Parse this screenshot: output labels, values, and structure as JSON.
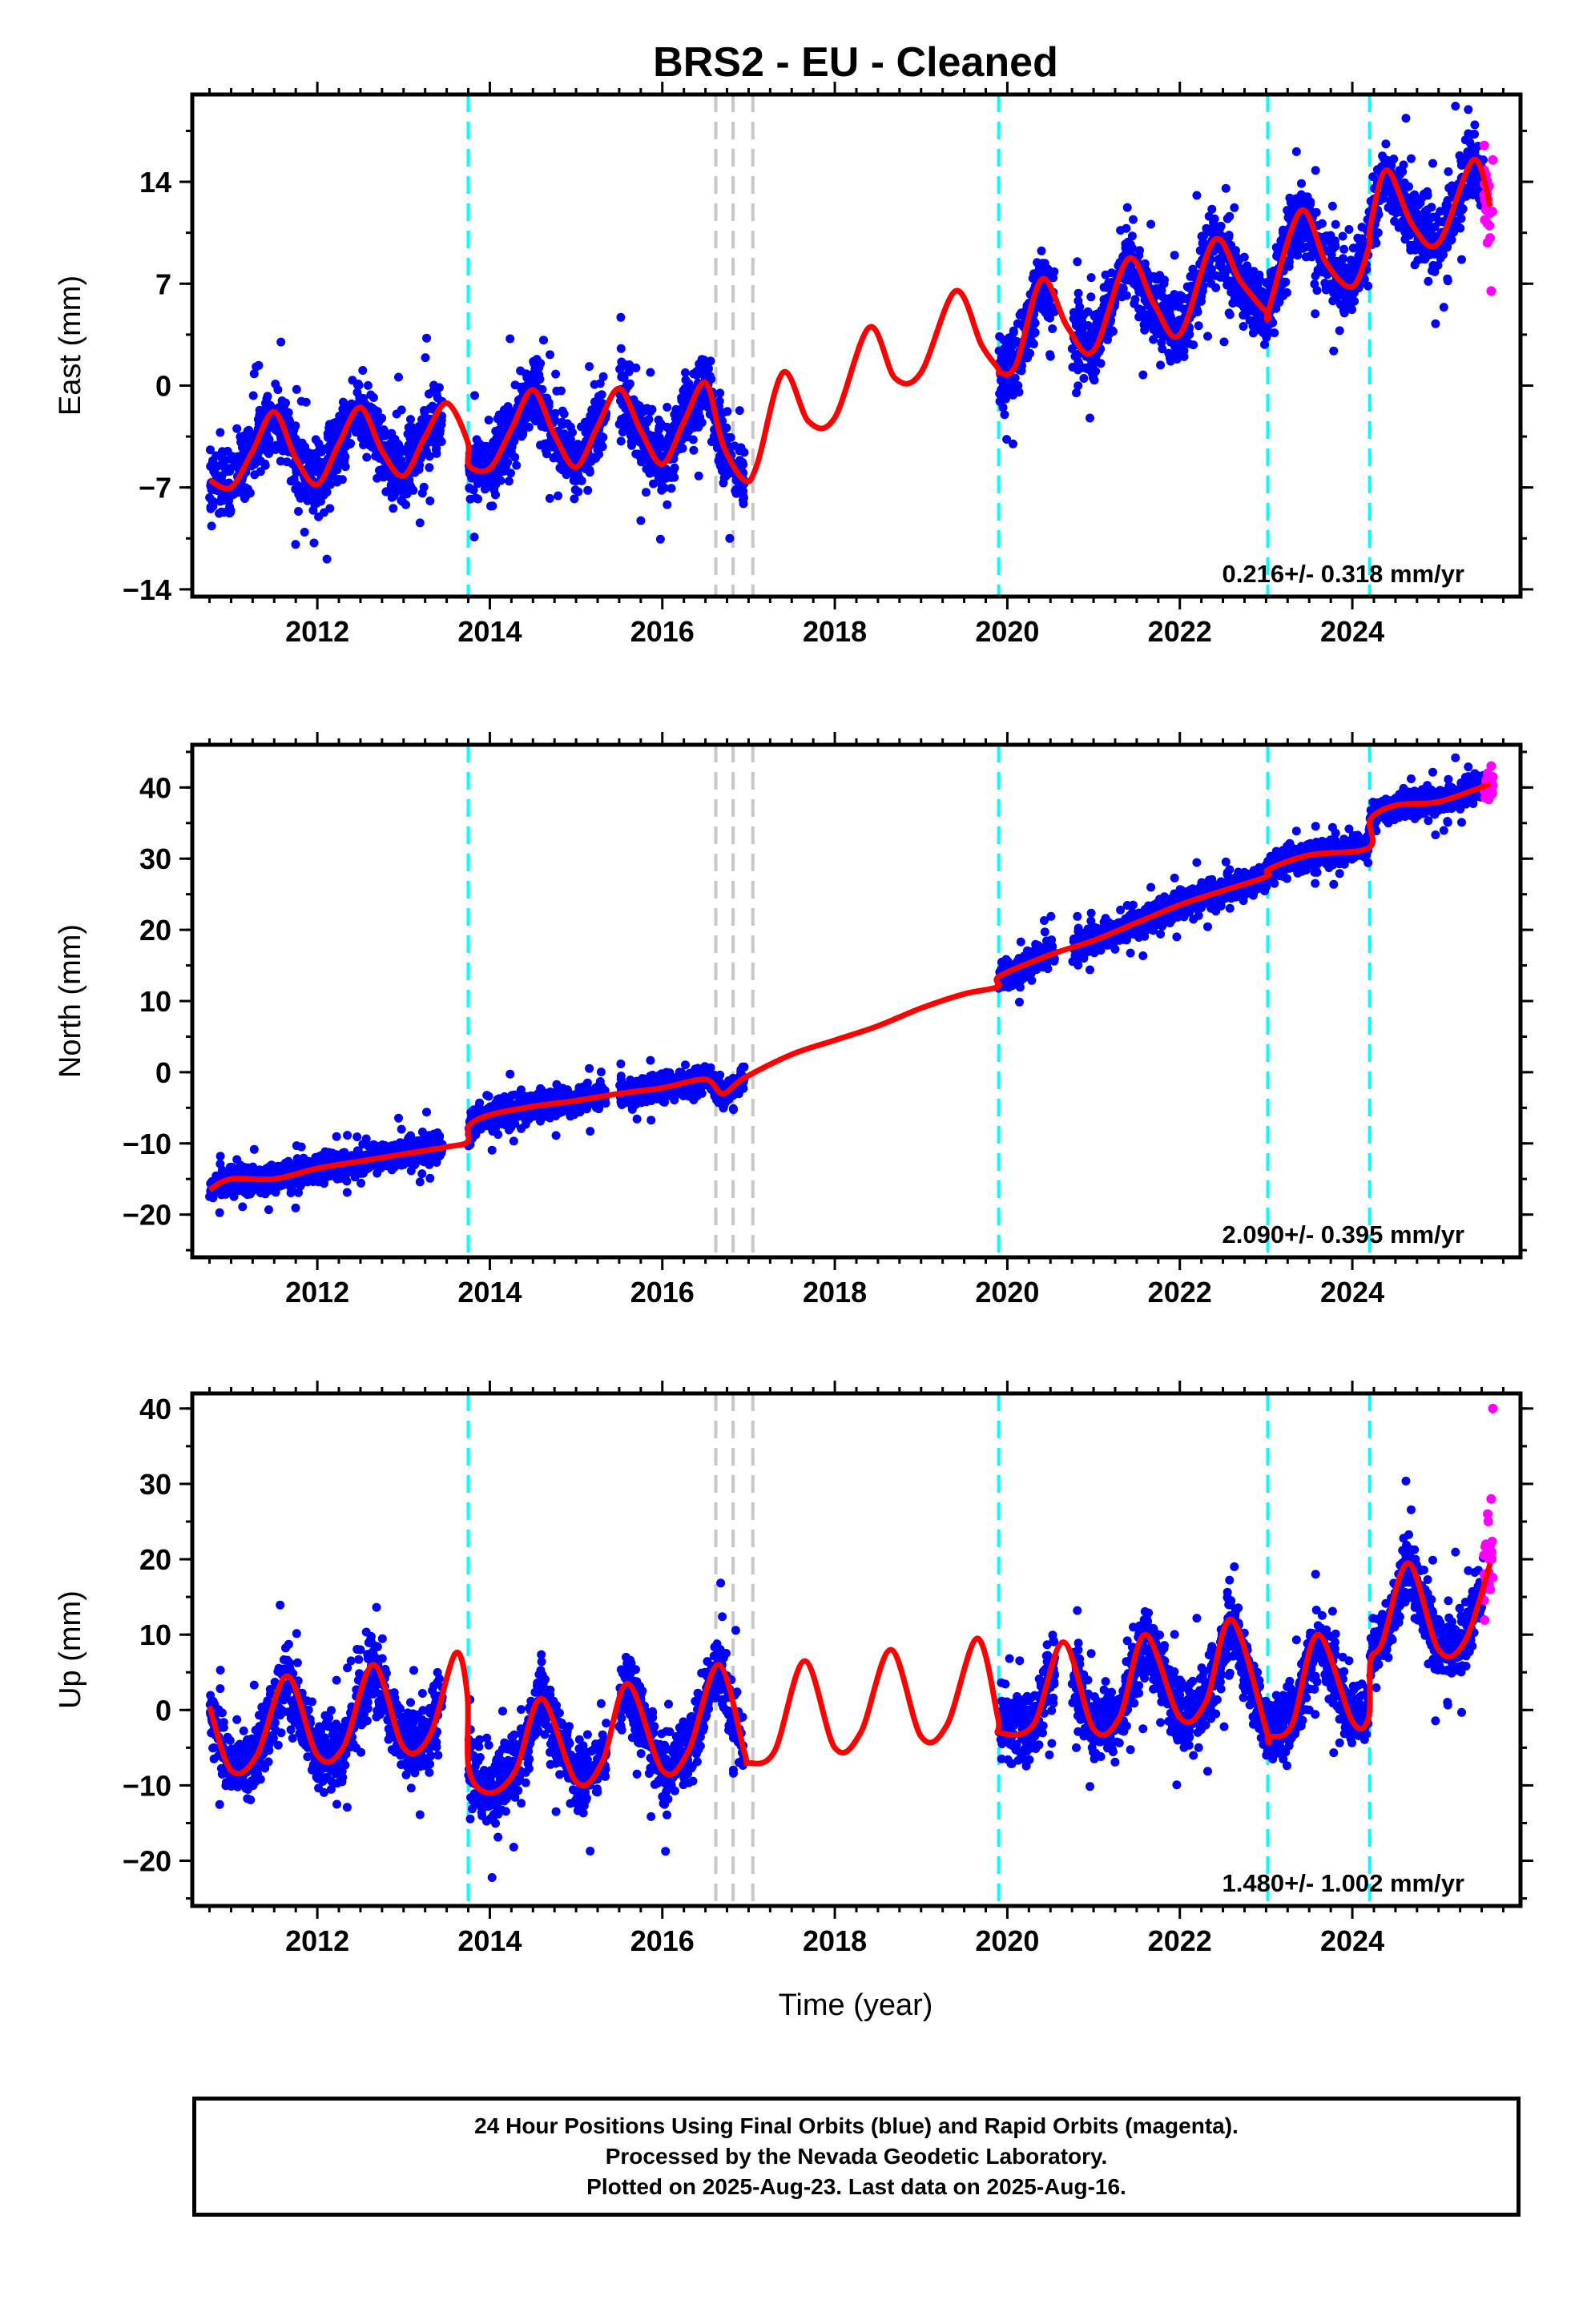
{
  "title": "BRS2  - EU - Cleaned",
  "x_axis_label": "Time (year)",
  "footer": [
    "24 Hour Positions Using Final Orbits (blue) and Rapid Orbits (magenta).",
    "Processed by the Nevada Geodetic Laboratory.",
    "Plotted on 2025-Aug-23. Last data on 2025-Aug-16."
  ],
  "colors": {
    "final_orbits": "#0000ff",
    "rapid_orbits": "#ff00ff",
    "model_fit": "#ff0000",
    "equipment_change_lines": "#00ffff",
    "gray_event_lines": "#c8c8c8"
  },
  "chart_data": [
    {
      "type": "scatter",
      "title": "BRS2  - EU - Cleaned",
      "xlabel": "",
      "ylabel": "East (mm)",
      "xlim": [
        2010.55,
        2025.95
      ],
      "ylim": [
        -14.5,
        20
      ],
      "x_ticks": [
        2012,
        2014,
        2016,
        2018,
        2020,
        2022,
        2024
      ],
      "y_ticks": [
        -14,
        -7,
        0,
        7,
        14
      ],
      "grid": false,
      "rate_label": "0.216+/- 0.318 mm/yr",
      "event_lines_cyan": [
        2013.75,
        2019.9,
        2023.02,
        2024.2
      ],
      "event_lines_gray": [
        2016.62,
        2016.82,
        2017.05
      ],
      "data_periods": [
        [
          2010.75,
          2013.45
        ],
        [
          2013.75,
          2015.35
        ],
        [
          2015.5,
          2016.95
        ],
        [
          2019.9,
          2020.55
        ],
        [
          2020.75,
          2025.52
        ]
      ],
      "rapid_period": [
        2025.52,
        2025.63
      ],
      "series": [
        {
          "name": "model fit",
          "x": [
            2010.75,
            2011.0,
            2011.25,
            2011.5,
            2011.75,
            2012.0,
            2012.25,
            2012.5,
            2012.75,
            2013.0,
            2013.25,
            2013.5,
            2013.74,
            2013.76,
            2014.0,
            2014.25,
            2014.5,
            2014.75,
            2015.0,
            2015.25,
            2015.5,
            2015.75,
            2016.0,
            2016.25,
            2016.5,
            2016.7,
            2016.95,
            2017.1,
            2017.4,
            2017.7,
            2018.0,
            2018.4,
            2018.7,
            2019.0,
            2019.4,
            2019.7,
            2019.89,
            2019.91,
            2020.1,
            2020.4,
            2020.7,
            2021.0,
            2021.4,
            2021.7,
            2022.0,
            2022.4,
            2022.7,
            2023.01,
            2023.03,
            2023.4,
            2023.7,
            2024.0,
            2024.19,
            2024.21,
            2024.4,
            2024.7,
            2025.0,
            2025.4,
            2025.6
          ],
          "y": [
            -6.5,
            -7.0,
            -4.5,
            -1.8,
            -5.0,
            -6.8,
            -4.0,
            -1.5,
            -4.5,
            -6.2,
            -3.5,
            -1.2,
            -3.8,
            -5.5,
            -5.7,
            -3.0,
            -0.3,
            -3.4,
            -5.6,
            -2.8,
            -0.2,
            -3.1,
            -5.4,
            -2.5,
            0.2,
            -4.0,
            -6.5,
            -5.4,
            0.9,
            -2.5,
            -2.2,
            4.0,
            0.5,
            0.9,
            6.5,
            2.8,
            1.2,
            0.9,
            1.4,
            7.3,
            4.0,
            2.4,
            8.7,
            5.6,
            3.5,
            10.0,
            7.2,
            5.0,
            5.2,
            12.0,
            8.4,
            6.8,
            9.5,
            11.0,
            14.8,
            11.0,
            9.8,
            15.5,
            12.3
          ]
        },
        {
          "name": "final orbits",
          "x": [
            2010.8,
            2011.0,
            2011.2,
            2011.4,
            2011.6,
            2011.8,
            2012.0,
            2012.2,
            2012.4,
            2012.6,
            2012.8,
            2013.0,
            2013.2,
            2013.8,
            2014.0,
            2014.2,
            2014.4,
            2014.6,
            2014.8,
            2015.0,
            2015.2,
            2015.6,
            2015.8,
            2016.0,
            2016.2,
            2016.4,
            2016.6,
            2016.8,
            2019.95,
            2020.1,
            2020.3,
            2020.5,
            2020.8,
            2021.0,
            2021.2,
            2021.4,
            2021.6,
            2021.8,
            2022.0,
            2022.2,
            2022.4,
            2022.6,
            2022.8,
            2023.0,
            2023.2,
            2023.4,
            2023.6,
            2023.8,
            2024.0,
            2024.3,
            2024.5,
            2024.7,
            2024.9,
            2025.1,
            2025.3,
            2025.5
          ],
          "y": [
            -8.0,
            -7.5,
            -5.0,
            -2.5,
            -3.5,
            -5.8,
            -7.0,
            -5.5,
            -2.5,
            -4.0,
            -6.2,
            -7.5,
            -5.0,
            -5.0,
            -5.5,
            -3.5,
            -1.0,
            -2.8,
            -5.0,
            -5.2,
            -3.0,
            -1.5,
            -3.0,
            -5.0,
            -4.0,
            -1.0,
            -3.5,
            -6.0,
            -1.5,
            2.0,
            4.5,
            2.0,
            -0.5,
            1.5,
            4.5,
            8.5,
            8.0,
            5.0,
            4.5,
            7.0,
            10.0,
            9.0,
            6.5,
            5.5,
            7.0,
            11.5,
            11.0,
            8.0,
            7.0,
            10.5,
            14.0,
            13.0,
            10.0,
            9.5,
            13.0,
            15.0
          ]
        },
        {
          "name": "rapid orbits",
          "x": [
            2025.53,
            2025.55,
            2025.57,
            2025.59,
            2025.61,
            2025.63
          ],
          "y": [
            16.5,
            14.5,
            12.8,
            11.0,
            6.5,
            15.5
          ]
        }
      ]
    },
    {
      "type": "scatter",
      "xlabel": "",
      "ylabel": "North (mm)",
      "xlim": [
        2010.55,
        2025.95
      ],
      "ylim": [
        -26,
        46
      ],
      "x_ticks": [
        2012,
        2014,
        2016,
        2018,
        2020,
        2022,
        2024
      ],
      "y_ticks": [
        -20,
        -10,
        0,
        10,
        20,
        30,
        40
      ],
      "grid": false,
      "rate_label": "2.090+/- 0.395 mm/yr",
      "event_lines_cyan": [
        2013.75,
        2019.9,
        2023.02,
        2024.2
      ],
      "event_lines_gray": [
        2016.62,
        2016.82,
        2017.05
      ],
      "data_periods": [
        [
          2010.75,
          2013.45
        ],
        [
          2013.75,
          2015.35
        ],
        [
          2015.5,
          2016.95
        ],
        [
          2019.9,
          2020.55
        ],
        [
          2020.75,
          2025.52
        ]
      ],
      "rapid_period": [
        2025.52,
        2025.63
      ],
      "series": [
        {
          "name": "model fit",
          "x": [
            2010.75,
            2011.0,
            2011.5,
            2012.0,
            2012.5,
            2013.0,
            2013.5,
            2013.74,
            2013.76,
            2014.0,
            2014.5,
            2015.0,
            2015.5,
            2016.0,
            2016.5,
            2016.7,
            2016.95,
            2017.5,
            2018.0,
            2018.5,
            2019.0,
            2019.5,
            2019.89,
            2019.91,
            2020.5,
            2021.0,
            2021.5,
            2022.0,
            2022.5,
            2023.01,
            2023.03,
            2023.5,
            2024.19,
            2024.21,
            2024.5,
            2025.0,
            2025.6
          ],
          "y": [
            -16.5,
            -15.0,
            -15.0,
            -13.5,
            -12.5,
            -11.5,
            -10.5,
            -9.8,
            -7.5,
            -6.0,
            -4.8,
            -4.0,
            -3.0,
            -2.2,
            -1.0,
            -3.0,
            -0.8,
            2.5,
            4.5,
            6.5,
            9.0,
            11.0,
            12.0,
            13.5,
            16.5,
            18.5,
            21.0,
            23.5,
            25.5,
            27.5,
            28.5,
            30.5,
            31.5,
            35.5,
            37.5,
            38.0,
            40.5
          ]
        },
        {
          "name": "final orbits",
          "x": [
            2010.8,
            2011.0,
            2011.3,
            2011.6,
            2011.9,
            2012.2,
            2012.5,
            2012.8,
            2013.1,
            2013.4,
            2013.8,
            2014.1,
            2014.4,
            2014.7,
            2015.0,
            2015.3,
            2015.6,
            2015.9,
            2016.2,
            2016.5,
            2016.8,
            2019.95,
            2020.2,
            2020.5,
            2020.8,
            2021.1,
            2021.4,
            2021.7,
            2022.0,
            2022.3,
            2022.6,
            2022.9,
            2023.2,
            2023.5,
            2023.8,
            2024.1,
            2024.4,
            2024.7,
            2025.0,
            2025.3,
            2025.5
          ],
          "y": [
            -17.0,
            -15.5,
            -14.5,
            -14.0,
            -14.5,
            -13.0,
            -12.0,
            -11.0,
            -11.5,
            -10.0,
            -7.0,
            -6.0,
            -5.5,
            -4.0,
            -4.5,
            -3.5,
            -3.0,
            -2.0,
            -3.0,
            -1.5,
            -2.5,
            12.0,
            14.0,
            16.0,
            17.0,
            18.5,
            21.0,
            22.0,
            23.5,
            24.0,
            25.0,
            26.0,
            28.0,
            29.5,
            30.0,
            31.0,
            36.5,
            37.5,
            38.0,
            38.5,
            40.0
          ]
        },
        {
          "name": "rapid orbits",
          "x": [
            2025.53,
            2025.55,
            2025.57,
            2025.59,
            2025.61,
            2025.63
          ],
          "y": [
            39.5,
            41.0,
            42.0,
            40.0,
            43.0,
            41.5
          ]
        }
      ]
    },
    {
      "type": "scatter",
      "xlabel": "Time (year)",
      "ylabel": "Up (mm)",
      "xlim": [
        2010.55,
        2025.95
      ],
      "ylim": [
        -26,
        42
      ],
      "x_ticks": [
        2012,
        2014,
        2016,
        2018,
        2020,
        2022,
        2024
      ],
      "y_ticks": [
        -20,
        -10,
        0,
        10,
        20,
        30,
        40
      ],
      "grid": false,
      "rate_label": "1.480+/- 1.002 mm/yr",
      "event_lines_cyan": [
        2013.75,
        2019.9,
        2023.02,
        2024.2
      ],
      "event_lines_gray": [
        2016.62,
        2016.82,
        2017.05
      ],
      "data_periods": [
        [
          2010.75,
          2013.45
        ],
        [
          2013.75,
          2015.35
        ],
        [
          2015.5,
          2016.95
        ],
        [
          2019.9,
          2020.55
        ],
        [
          2020.75,
          2025.52
        ]
      ],
      "rapid_period": [
        2025.52,
        2025.63
      ],
      "series": [
        {
          "name": "model fit",
          "x": [
            2010.75,
            2011.0,
            2011.3,
            2011.65,
            2012.0,
            2012.3,
            2012.65,
            2013.0,
            2013.3,
            2013.6,
            2013.74,
            2013.76,
            2014.0,
            2014.3,
            2014.6,
            2015.0,
            2015.3,
            2015.6,
            2016.0,
            2016.3,
            2016.65,
            2016.95,
            2017.0,
            2017.3,
            2017.65,
            2018.0,
            2018.3,
            2018.65,
            2019.0,
            2019.3,
            2019.65,
            2019.89,
            2019.91,
            2020.3,
            2020.65,
            2021.0,
            2021.3,
            2021.6,
            2022.0,
            2022.3,
            2022.6,
            2023.01,
            2023.03,
            2023.3,
            2023.6,
            2024.0,
            2024.19,
            2024.21,
            2024.35,
            2024.65,
            2025.0,
            2025.3,
            2025.6
          ],
          "y": [
            0.5,
            -8.0,
            -6.0,
            4.5,
            -6.0,
            -5.0,
            6.0,
            -5.0,
            -3.5,
            7.5,
            2.0,
            -8.0,
            -11.0,
            -8.0,
            1.5,
            -9.5,
            -7.0,
            3.5,
            -8.0,
            -5.5,
            6.0,
            -5.5,
            -7.0,
            -5.5,
            6.5,
            -5.0,
            -3.0,
            8.0,
            -3.5,
            -2.0,
            9.5,
            -1.0,
            -3.0,
            -2.0,
            9.0,
            -2.5,
            -1.0,
            10.0,
            -1.0,
            1.0,
            12.0,
            -3.0,
            -3.5,
            -2.0,
            10.0,
            -1.5,
            -1.0,
            6.5,
            9.0,
            19.5,
            8.0,
            9.0,
            19.5
          ]
        },
        {
          "name": "final orbits",
          "x": [
            2010.8,
            2011.0,
            2011.3,
            2011.6,
            2011.9,
            2012.2,
            2012.5,
            2012.8,
            2013.1,
            2013.4,
            2013.8,
            2014.1,
            2014.4,
            2014.7,
            2015.0,
            2015.3,
            2015.6,
            2015.9,
            2016.2,
            2016.5,
            2016.8,
            2019.95,
            2020.2,
            2020.5,
            2020.8,
            2021.1,
            2021.4,
            2021.7,
            2022.0,
            2022.3,
            2022.6,
            2022.9,
            2023.2,
            2023.5,
            2023.8,
            2024.1,
            2024.4,
            2024.7,
            2025.0,
            2025.3,
            2025.5
          ],
          "y": [
            -5.0,
            -10.0,
            -7.0,
            5.0,
            -3.0,
            -6.0,
            8.0,
            0.0,
            -5.0,
            -6.0,
            -12.0,
            -10.0,
            -5.0,
            2.0,
            -12.0,
            -8.0,
            5.0,
            -3.0,
            -8.0,
            -1.0,
            4.0,
            -2.0,
            -4.0,
            3.0,
            -5.0,
            -3.0,
            4.0,
            10.0,
            2.0,
            -2.0,
            12.0,
            5.0,
            -3.0,
            0.0,
            9.0,
            -2.0,
            8.0,
            20.0,
            12.0,
            8.0,
            16.0
          ]
        },
        {
          "name": "rapid orbits",
          "x": [
            2025.53,
            2025.55,
            2025.57,
            2025.59,
            2025.61,
            2025.63
          ],
          "y": [
            18.0,
            22.0,
            26.0,
            20.0,
            28.0,
            40.0
          ]
        }
      ]
    }
  ]
}
